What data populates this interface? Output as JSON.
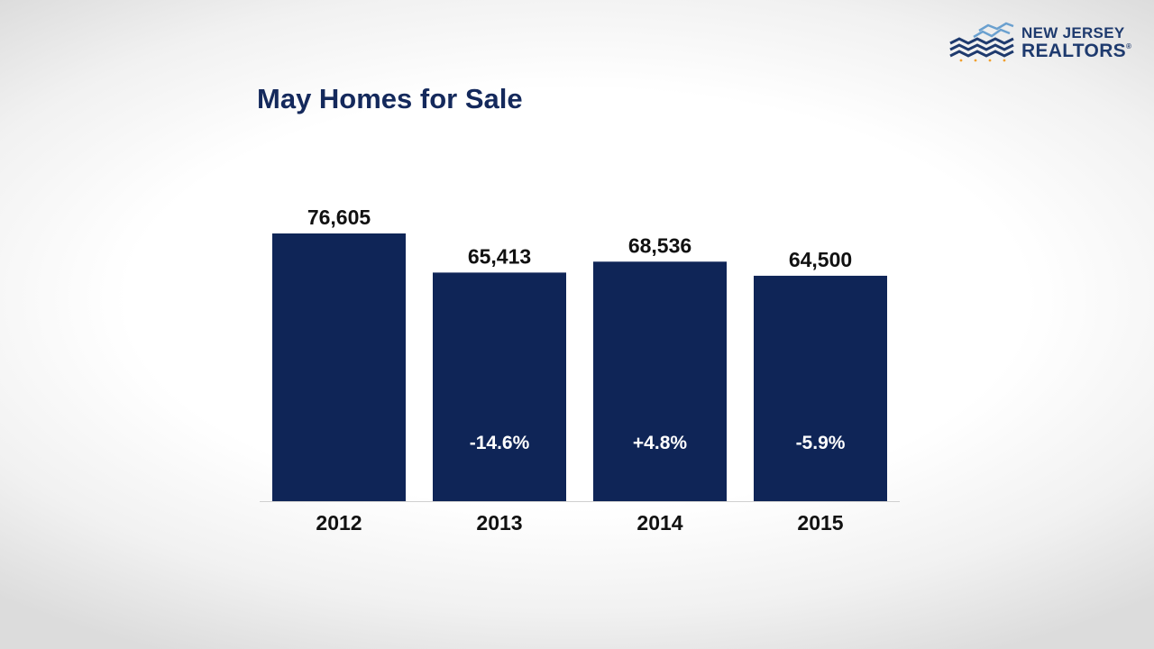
{
  "logo": {
    "line1": "NEW JERSEY",
    "line2": "REALTORS",
    "registered_mark": "®"
  },
  "colors": {
    "bar": "#0f2557",
    "title": "#14295c",
    "value_label": "#111111",
    "change_label": "#ffffff",
    "logo_blue": "#1e3a6e",
    "logo_light_blue": "#6aa0cf",
    "logo_dots": "#f0a030"
  },
  "chart_data": {
    "type": "bar",
    "title": "May Homes for Sale",
    "categories": [
      "2012",
      "2013",
      "2014",
      "2015"
    ],
    "values": [
      76605,
      65413,
      68536,
      64500
    ],
    "value_labels": [
      "76,605",
      "65,413",
      "68,536",
      "64,500"
    ],
    "change_labels": [
      "",
      "-14.6%",
      "+4.8%",
      "-5.9%"
    ],
    "xlabel": "",
    "ylabel": "",
    "ylim": [
      0,
      76605
    ],
    "grid": false,
    "legend": "none"
  }
}
